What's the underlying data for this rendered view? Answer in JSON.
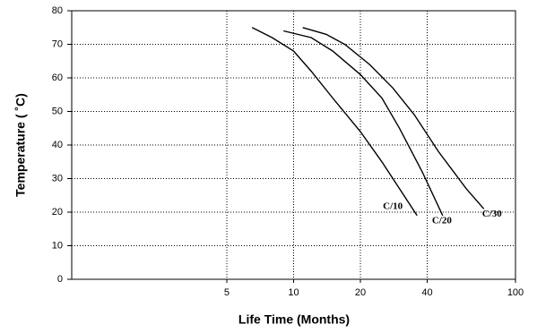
{
  "chart_data": {
    "type": "line",
    "xlabel": "Life Time (Months)",
    "ylabel": "Temperature ( ˚C)",
    "xscale": "log",
    "xlim": [
      1,
      100
    ],
    "xticks": [
      5,
      10,
      20,
      40,
      100
    ],
    "ylim": [
      0,
      80
    ],
    "yticks": [
      0,
      10,
      20,
      30,
      40,
      50,
      60,
      70,
      80
    ],
    "grid": true,
    "series": [
      {
        "name": "C/10",
        "color": "#000000",
        "x": [
          6.5,
          8,
          10,
          12,
          15,
          20,
          25,
          30,
          36
        ],
        "values": [
          75,
          72,
          68,
          62,
          54,
          44,
          35,
          27,
          19
        ]
      },
      {
        "name": "C/20",
        "color": "#000000",
        "x": [
          9,
          12,
          15,
          20,
          25,
          30,
          38,
          47
        ],
        "values": [
          74,
          72,
          68,
          61,
          54,
          45,
          32,
          19
        ]
      },
      {
        "name": "C/30",
        "color": "#000000",
        "x": [
          11,
          14,
          17,
          22,
          28,
          35,
          45,
          60,
          72
        ],
        "values": [
          75,
          73,
          70,
          64,
          57,
          49,
          38,
          27,
          21
        ]
      }
    ]
  }
}
